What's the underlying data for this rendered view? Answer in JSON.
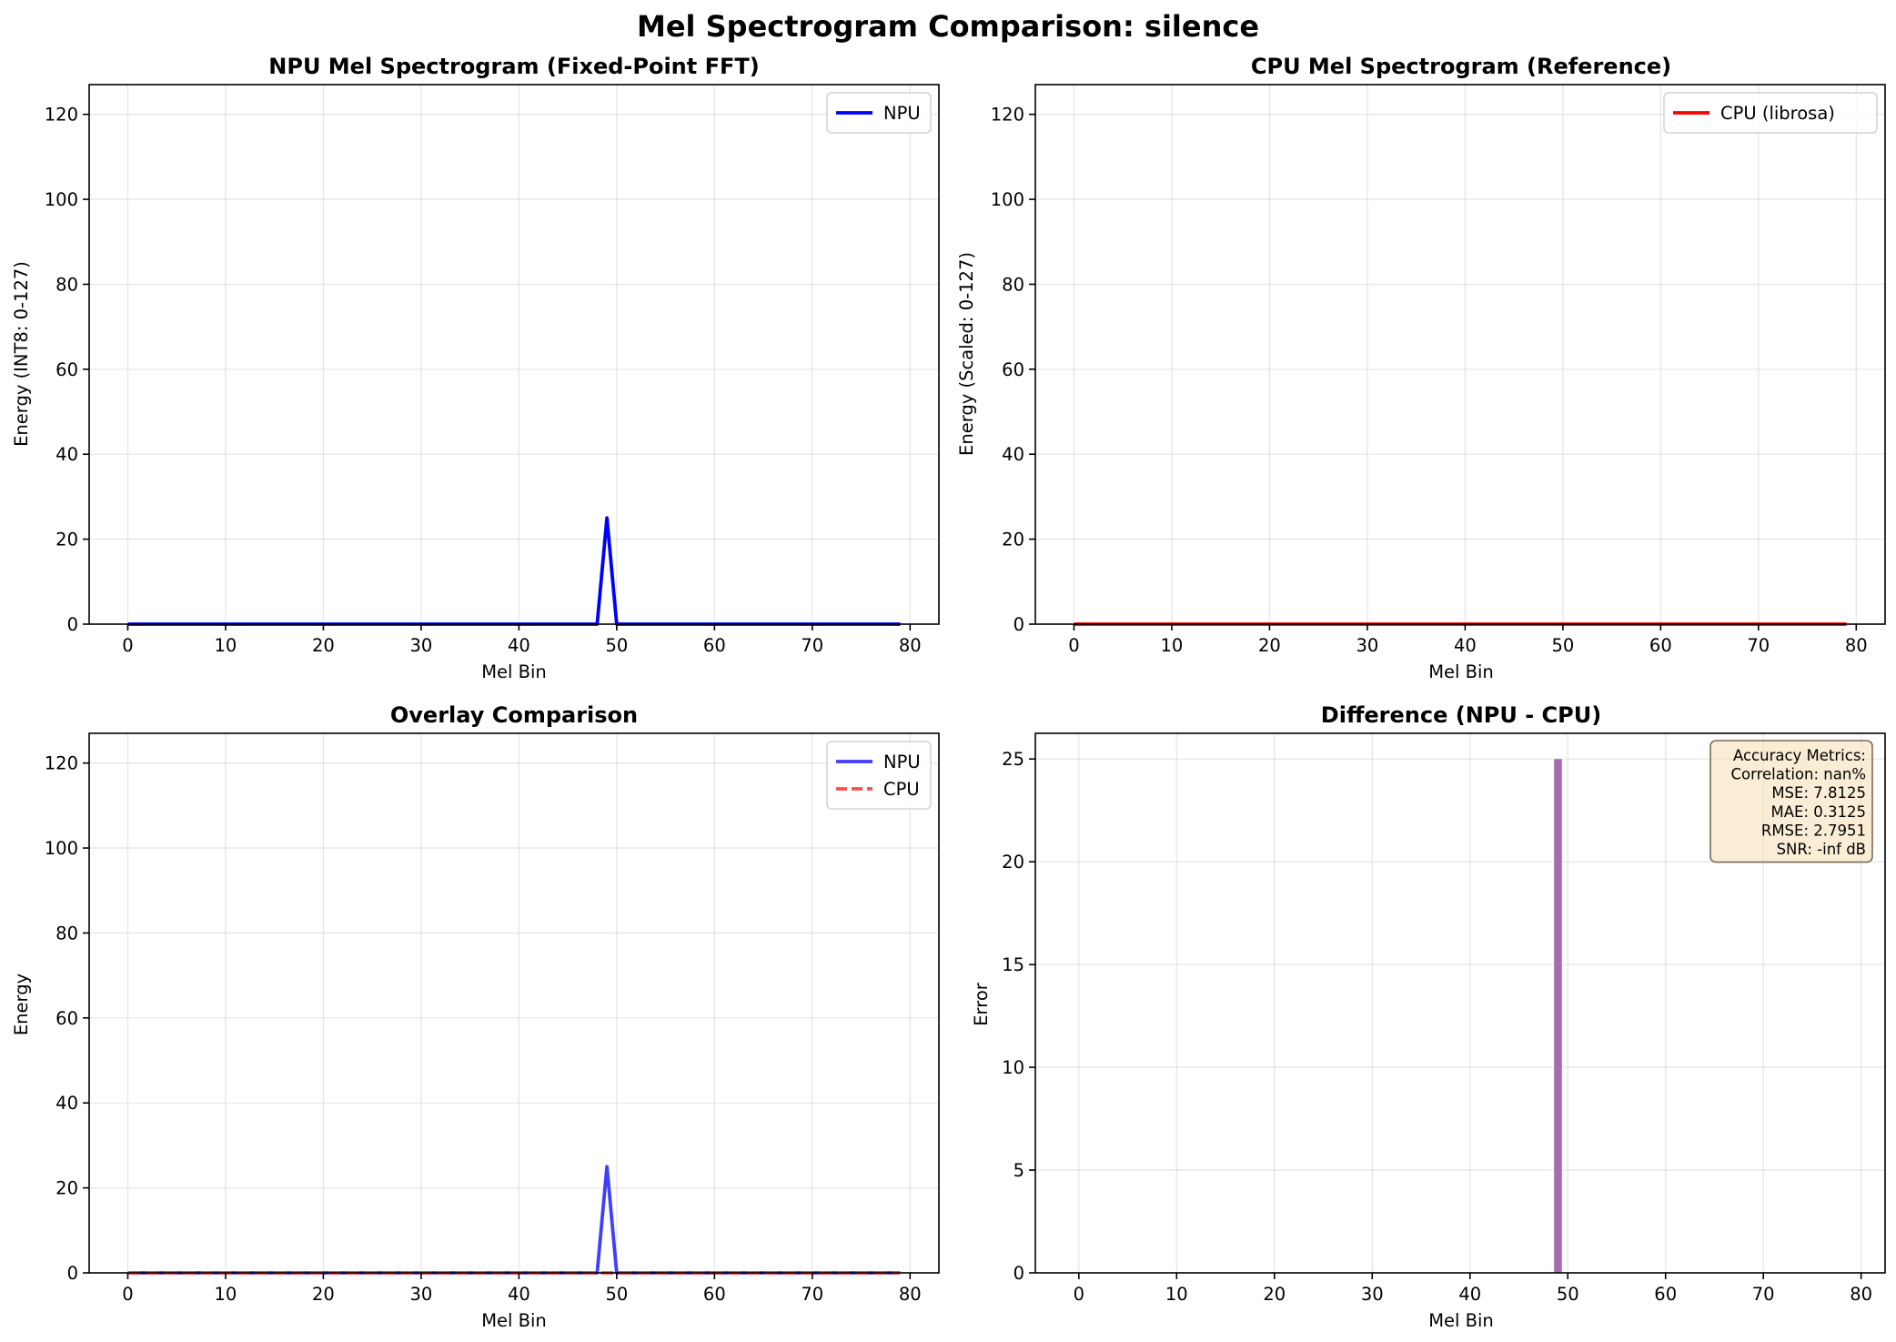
{
  "figure_title": "Mel Spectrogram Comparison: silence",
  "colors": {
    "npu": "#0000ff",
    "cpu": "#ff0000",
    "overlay_npu": "#3f3fff",
    "overlay_cpu": "#ff4d4d",
    "diff_bar": "#a66cb0",
    "metrics_box_fill": "#f5deb3",
    "metrics_box_edge": "#7a6a55"
  },
  "chart_data": [
    {
      "id": "npu",
      "type": "line",
      "title": "NPU Mel Spectrogram (Fixed-Point FFT)",
      "xlabel": "Mel Bin",
      "ylabel": "Energy (INT8: 0-127)",
      "xlim": [
        -3.95,
        82.95
      ],
      "ylim": [
        0,
        127
      ],
      "xticks": [
        0,
        10,
        20,
        30,
        40,
        50,
        60,
        70,
        80
      ],
      "yticks": [
        0,
        20,
        40,
        60,
        80,
        100,
        120
      ],
      "grid": true,
      "legend": "top-right",
      "series": [
        {
          "name": "NPU",
          "color": "#0000ff",
          "style": "solid",
          "spikes": [
            {
              "x": 49,
              "y": 25
            }
          ],
          "x_range": [
            0,
            79
          ],
          "baseline": 0
        }
      ]
    },
    {
      "id": "cpu",
      "type": "line",
      "title": "CPU Mel Spectrogram (Reference)",
      "xlabel": "Mel Bin",
      "ylabel": "Energy (Scaled: 0-127)",
      "xlim": [
        -3.95,
        82.95
      ],
      "ylim": [
        0,
        127
      ],
      "xticks": [
        0,
        10,
        20,
        30,
        40,
        50,
        60,
        70,
        80
      ],
      "yticks": [
        0,
        20,
        40,
        60,
        80,
        100,
        120
      ],
      "grid": true,
      "legend": "top-right",
      "series": [
        {
          "name": "CPU (librosa)",
          "color": "#ff0000",
          "style": "solid",
          "spikes": [],
          "x_range": [
            0,
            79
          ],
          "baseline": 0
        }
      ]
    },
    {
      "id": "overlay",
      "type": "line",
      "title": "Overlay Comparison",
      "xlabel": "Mel Bin",
      "ylabel": "Energy",
      "xlim": [
        -3.95,
        82.95
      ],
      "ylim": [
        0,
        127
      ],
      "xticks": [
        0,
        10,
        20,
        30,
        40,
        50,
        60,
        70,
        80
      ],
      "yticks": [
        0,
        20,
        40,
        60,
        80,
        100,
        120
      ],
      "grid": true,
      "legend": "top-right",
      "series": [
        {
          "name": "NPU",
          "color": "#3f3fff",
          "style": "solid",
          "spikes": [
            {
              "x": 49,
              "y": 25
            }
          ],
          "x_range": [
            0,
            79
          ],
          "baseline": 0
        },
        {
          "name": "CPU",
          "color": "#ff4d4d",
          "style": "dashed",
          "spikes": [],
          "x_range": [
            0,
            79
          ],
          "baseline": 0
        }
      ]
    },
    {
      "id": "diff",
      "type": "bar",
      "title": "Difference (NPU - CPU)",
      "xlabel": "Mel Bin",
      "ylabel": "Error",
      "xlim": [
        -4.45,
        82.45
      ],
      "ylim": [
        0,
        26.25
      ],
      "xticks": [
        0,
        10,
        20,
        30,
        40,
        50,
        60,
        70,
        80
      ],
      "yticks": [
        0,
        5,
        10,
        15,
        20,
        25
      ],
      "grid": true,
      "bars": [
        {
          "x": 49,
          "value": 25
        }
      ],
      "bar_width": 0.8,
      "metrics_title": "Accuracy Metrics:",
      "metrics": [
        "Correlation: nan%",
        "MSE: 7.8125",
        "MAE: 0.3125",
        "RMSE: 2.7951",
        "SNR: -inf dB"
      ]
    }
  ]
}
